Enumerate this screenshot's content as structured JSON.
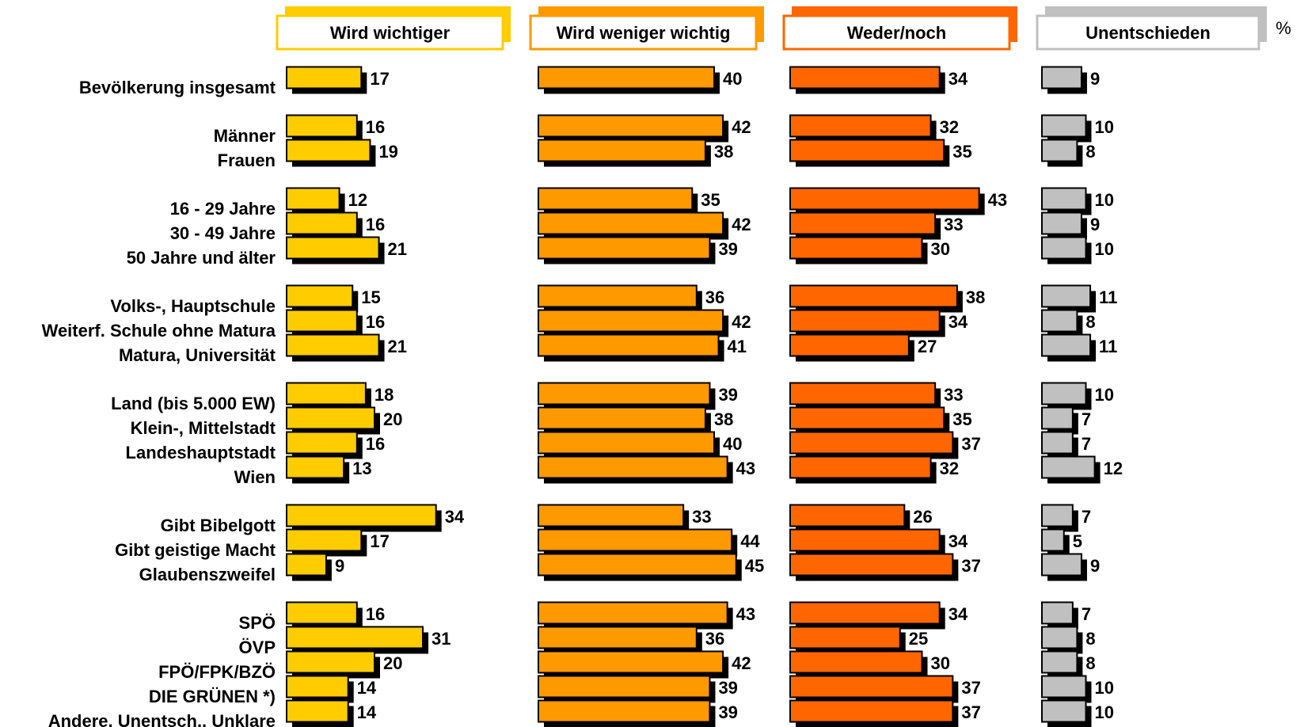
{
  "chart_data": {
    "type": "bar",
    "orientation": "horizontal",
    "unit": "%",
    "legend_placement": "top",
    "grid": false,
    "groups": [
      [
        "Bevölkerung insgesamt"
      ],
      [
        "Männer",
        "Frauen"
      ],
      [
        "16 - 29 Jahre",
        "30 - 49 Jahre",
        "50 Jahre und älter"
      ],
      [
        "Volks-, Hauptschule",
        "Weiterf. Schule ohne Matura",
        "Matura, Universität"
      ],
      [
        "Land (bis 5.000 EW)",
        "Klein-, Mittelstadt",
        "Landeshauptstadt",
        "Wien"
      ],
      [
        "Gibt Bibelgott",
        "Gibt geistige Macht",
        "Glaubenszweifel"
      ],
      [
        "SPÖ",
        "ÖVP",
        "FPÖ/FPK/BZÖ",
        "DIE GRÜNEN *)",
        "Andere, Unentsch., Unklare"
      ]
    ],
    "categories": [
      "Bevölkerung insgesamt",
      "Männer",
      "Frauen",
      "16 - 29 Jahre",
      "30 - 49 Jahre",
      "50 Jahre und älter",
      "Volks-, Hauptschule",
      "Weiterf. Schule ohne Matura",
      "Matura, Universität",
      "Land (bis 5.000 EW)",
      "Klein-, Mittelstadt",
      "Landeshauptstadt",
      "Wien",
      "Gibt Bibelgott",
      "Gibt geistige Macht",
      "Glaubenszweifel",
      "SPÖ",
      "ÖVP",
      "FPÖ/FPK/BZÖ",
      "DIE GRÜNEN *)",
      "Andere, Unentsch., Unklare"
    ],
    "series": [
      {
        "name": "Wird wichtiger",
        "color": "#FFCC00",
        "values": [
          17,
          16,
          19,
          12,
          16,
          21,
          15,
          16,
          21,
          18,
          20,
          16,
          13,
          34,
          17,
          9,
          16,
          31,
          20,
          14,
          14
        ]
      },
      {
        "name": "Wird weniger wichtig",
        "color": "#FF9900",
        "values": [
          40,
          42,
          38,
          35,
          42,
          39,
          36,
          42,
          41,
          39,
          38,
          40,
          43,
          33,
          44,
          45,
          43,
          36,
          42,
          39,
          39
        ]
      },
      {
        "name": "Weder/noch",
        "color": "#FF6600",
        "values": [
          34,
          32,
          35,
          43,
          33,
          30,
          38,
          34,
          27,
          33,
          35,
          37,
          32,
          26,
          34,
          37,
          34,
          25,
          30,
          37,
          37
        ]
      },
      {
        "name": "Unentschieden",
        "color": "#C0C0C0",
        "values": [
          9,
          10,
          8,
          10,
          9,
          10,
          11,
          8,
          11,
          10,
          7,
          7,
          12,
          7,
          5,
          9,
          7,
          8,
          8,
          10,
          10
        ]
      }
    ]
  }
}
